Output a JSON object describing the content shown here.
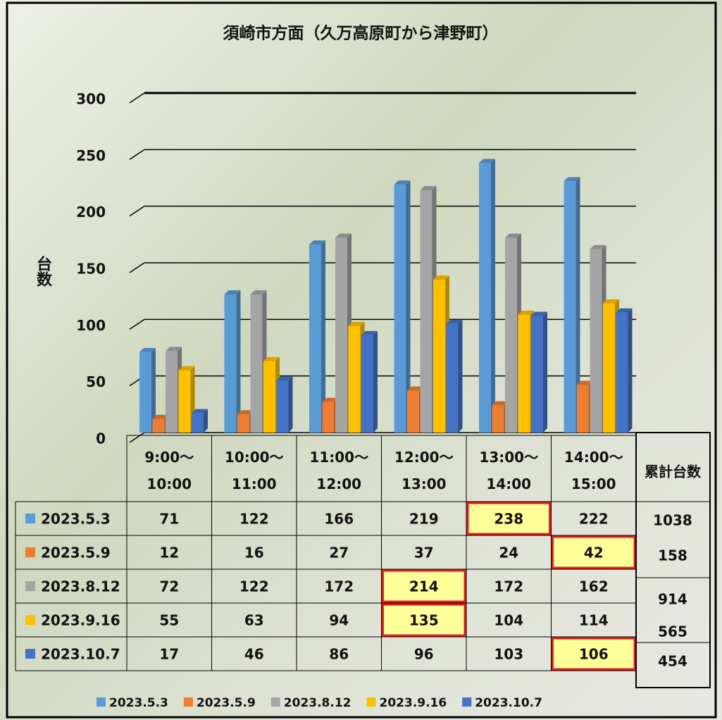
{
  "chart_data": {
    "type": "bar",
    "title": "須崎市方面（久万高原町から津野町）",
    "y_label": "台数",
    "categories": [
      "9:00～\n10:00",
      "10:00～\n11:00",
      "11:00～\n12:00",
      "12:00～\n13:00",
      "13:00～\n14:00",
      "14:00～\n15:00"
    ],
    "series": [
      {
        "name": "2023.5.3",
        "color": "#5b9bd5",
        "values": [
          71,
          122,
          166,
          219,
          238,
          222
        ]
      },
      {
        "name": "2023.5.9",
        "color": "#ed7d31",
        "values": [
          12,
          16,
          27,
          37,
          24,
          42
        ]
      },
      {
        "name": "2023.8.12",
        "color": "#a5a5a5",
        "values": [
          72,
          122,
          172,
          214,
          172,
          162
        ]
      },
      {
        "name": "2023.9.16",
        "color": "#ffc000",
        "values": [
          55,
          63,
          94,
          135,
          104,
          114
        ]
      },
      {
        "name": "2023.10.7",
        "color": "#4472c4",
        "values": [
          17,
          46,
          86,
          96,
          103,
          106
        ]
      }
    ],
    "totals": {
      "label": "累計台数",
      "values": [
        1038,
        158,
        914,
        565,
        454
      ]
    },
    "ylim": [
      0,
      300
    ],
    "yticks": [
      0,
      50,
      100,
      150,
      200,
      250,
      300
    ],
    "grid": true
  }
}
